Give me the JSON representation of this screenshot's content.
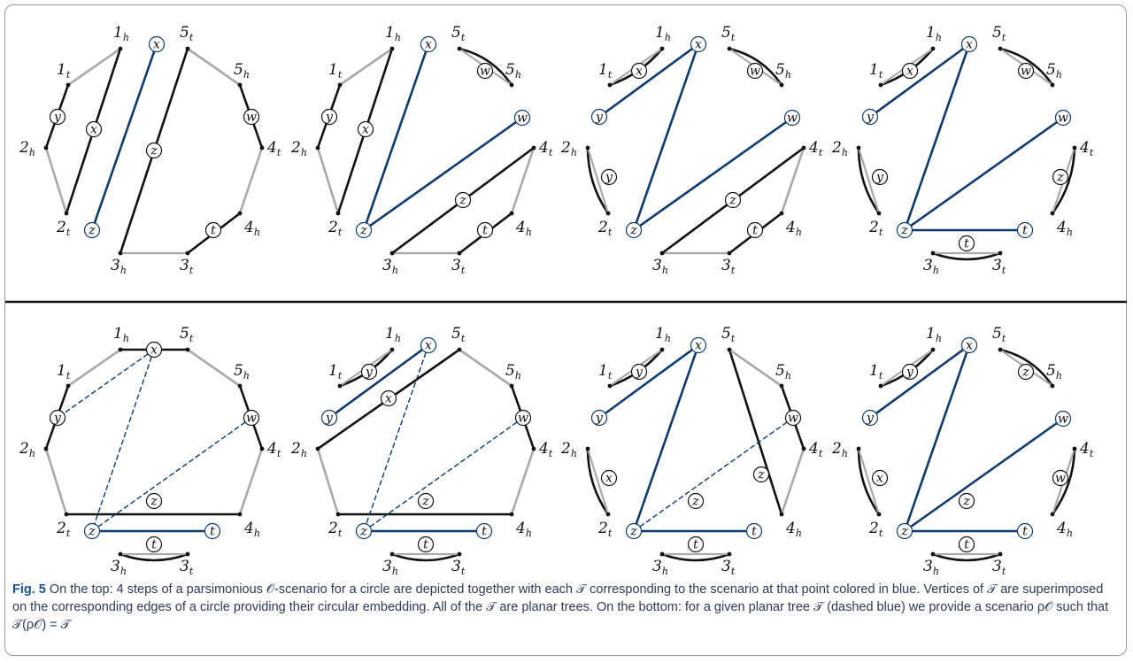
{
  "figure": {
    "caption_label": "Fig. 5",
    "caption_text": "On the top: 4 steps of a parsimonious 𝒪-scenario for a circle are depicted together with each 𝒯 corresponding to the scenario at that point colored in blue. Vertices of 𝒯 are superimposed on the corresponding edges of a circle providing their circular embedding. All of the 𝒯 are planar trees. On the bottom: for a given planar tree 𝒯 (dashed blue) we provide a scenario ρ𝒪 such that 𝒯(ρ𝒪) = 𝒯"
  },
  "colors": {
    "blue": "#0d3a6b",
    "black": "#111111",
    "gray": "#a9a9a9",
    "divider": "#111111"
  },
  "vertex_labels": [
    "1h",
    "1t",
    "2h",
    "2t",
    "3h",
    "3t",
    "4h",
    "4t",
    "5h",
    "5t"
  ],
  "node_labels": [
    "x",
    "y",
    "z",
    "w",
    "t"
  ],
  "panels": [
    {
      "row": "top",
      "step": 1
    },
    {
      "row": "top",
      "step": 2
    },
    {
      "row": "top",
      "step": 3
    },
    {
      "row": "top",
      "step": 4
    },
    {
      "row": "bottom",
      "step": 1
    },
    {
      "row": "bottom",
      "step": 2
    },
    {
      "row": "bottom",
      "step": 3
    },
    {
      "row": "bottom",
      "step": 4
    }
  ]
}
